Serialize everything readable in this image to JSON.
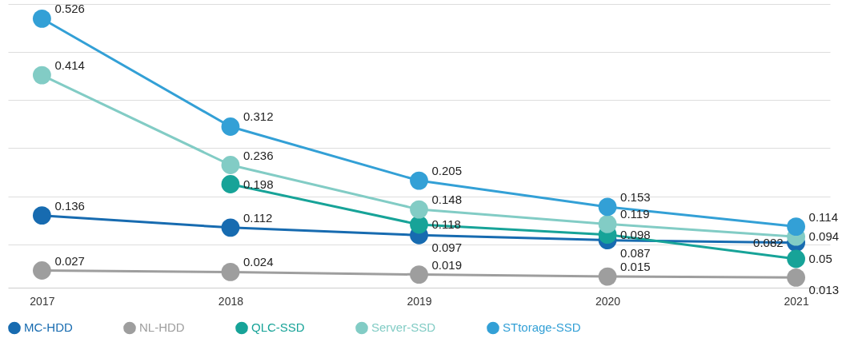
{
  "chart_data": {
    "type": "line",
    "categories": [
      "2017",
      "2018",
      "2019",
      "2020",
      "2021"
    ],
    "series": [
      {
        "name": "MC-HDD",
        "color": "#176bb0",
        "values": [
          0.136,
          0.112,
          0.097,
          0.087,
          0.082
        ]
      },
      {
        "name": "NL-HDD",
        "color": "#9e9e9e",
        "values": [
          0.027,
          0.024,
          0.019,
          0.015,
          0.013
        ]
      },
      {
        "name": "QLC-SSD",
        "color": "#17a398",
        "values": [
          null,
          0.198,
          0.118,
          0.098,
          0.05
        ]
      },
      {
        "name": "Server-SSD",
        "color": "#82ccc5",
        "values": [
          0.414,
          0.236,
          0.148,
          0.119,
          0.094
        ]
      },
      {
        "name": "STtorage-SSD",
        "color": "#33a0d6",
        "values": [
          0.526,
          0.312,
          0.205,
          0.153,
          0.114
        ]
      }
    ],
    "ylim": [
      -0.007,
      0.555
    ],
    "yticks": [
      {
        "value": 0.079,
        "label": null
      },
      {
        "value": 0.174,
        "label": null
      },
      {
        "value": 0.27,
        "label": null
      },
      {
        "value": 0.365,
        "label": null
      },
      {
        "value": 0.46,
        "label": null
      },
      {
        "value": 0.555,
        "label": null
      }
    ],
    "grid": "y",
    "legend": "bottom",
    "marker": "circle",
    "data_labels": true,
    "tick_labels": "x"
  }
}
